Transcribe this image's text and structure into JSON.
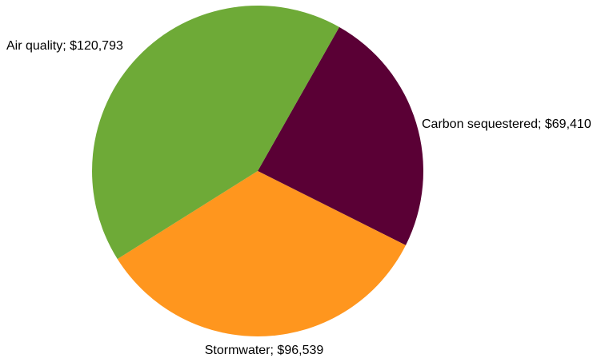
{
  "chart_data": {
    "type": "pie",
    "title": "",
    "slices": [
      {
        "label": "Carbon sequestered; $69,410",
        "category": "Carbon sequestered",
        "value": 69410,
        "color": "#5a0035"
      },
      {
        "label": "Stormwater; $96,539",
        "category": "Stormwater",
        "value": 96539,
        "color": "#ff961e"
      },
      {
        "label": "Air quality; $120,793",
        "category": "Air quality",
        "value": 120793,
        "color": "#6eaa37"
      }
    ],
    "start_angle_deg_clockwise_from_north": 29.5,
    "legend": "none"
  }
}
